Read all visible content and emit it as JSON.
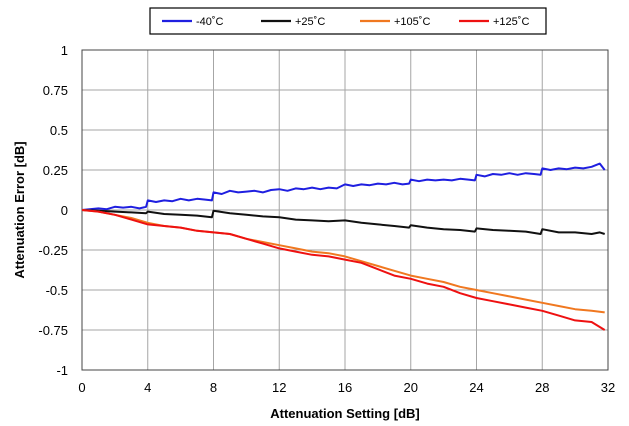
{
  "chart_data": {
    "type": "line",
    "title": "",
    "xlabel": "Attenuation Setting [dB]",
    "ylabel": "Attenuation Error [dB]",
    "xlim": [
      0,
      32
    ],
    "ylim": [
      -1,
      1
    ],
    "xticks": [
      0,
      4,
      8,
      12,
      16,
      20,
      24,
      28,
      32
    ],
    "yticks": [
      1,
      0.75,
      0.5,
      0.25,
      0,
      -0.25,
      -0.5,
      -0.75,
      -1
    ],
    "ytick_labels": [
      "1",
      "0.75",
      "0.5",
      "0.25",
      "0",
      "-0.25",
      "-0.5",
      "-0.75",
      "-1"
    ],
    "grid": true,
    "legend_position": "top",
    "series": [
      {
        "name": "-40˚C",
        "color": "#1f1fe0",
        "x": [
          0,
          1,
          1.5,
          2,
          2.5,
          3,
          3.5,
          3.9,
          4,
          4.5,
          5,
          5.5,
          6,
          6.5,
          7,
          7.5,
          7.9,
          8,
          8.5,
          9,
          9.5,
          10,
          10.5,
          11,
          11.5,
          12,
          12.5,
          13,
          13.5,
          14,
          14.5,
          15,
          15.5,
          16,
          16.5,
          17,
          17.5,
          18,
          18.5,
          19,
          19.5,
          19.9,
          20,
          20.5,
          21,
          21.5,
          22,
          22.5,
          23,
          23.5,
          23.9,
          24,
          24.5,
          25,
          25.5,
          26,
          26.5,
          27,
          27.5,
          27.9,
          28,
          28.5,
          29,
          29.5,
          30,
          30.5,
          31,
          31.5,
          31.8
        ],
        "y": [
          0,
          0.01,
          0.005,
          0.02,
          0.015,
          0.02,
          0.01,
          0.02,
          0.06,
          0.05,
          0.06,
          0.055,
          0.07,
          0.06,
          0.07,
          0.065,
          0.06,
          0.11,
          0.1,
          0.12,
          0.11,
          0.115,
          0.12,
          0.11,
          0.125,
          0.13,
          0.12,
          0.135,
          0.13,
          0.14,
          0.13,
          0.14,
          0.135,
          0.16,
          0.15,
          0.16,
          0.155,
          0.165,
          0.16,
          0.17,
          0.16,
          0.165,
          0.19,
          0.18,
          0.19,
          0.185,
          0.19,
          0.185,
          0.195,
          0.19,
          0.185,
          0.22,
          0.21,
          0.225,
          0.22,
          0.23,
          0.22,
          0.23,
          0.225,
          0.22,
          0.26,
          0.25,
          0.26,
          0.255,
          0.265,
          0.26,
          0.27,
          0.29,
          0.25
        ]
      },
      {
        "name": "+25˚C",
        "color": "#111111",
        "x": [
          0,
          1,
          2,
          3,
          3.9,
          4,
          5,
          6,
          7,
          7.9,
          8,
          9,
          10,
          11,
          12,
          13,
          14,
          15,
          16,
          17,
          18,
          19,
          19.9,
          20,
          21,
          22,
          23,
          23.9,
          24,
          25,
          26,
          27,
          27.9,
          28,
          29,
          30,
          31,
          31.5,
          31.8
        ],
        "y": [
          0,
          -0.005,
          -0.01,
          -0.015,
          -0.02,
          -0.01,
          -0.025,
          -0.03,
          -0.035,
          -0.045,
          -0.005,
          -0.02,
          -0.03,
          -0.04,
          -0.045,
          -0.06,
          -0.065,
          -0.07,
          -0.065,
          -0.08,
          -0.09,
          -0.1,
          -0.11,
          -0.095,
          -0.11,
          -0.12,
          -0.125,
          -0.135,
          -0.115,
          -0.125,
          -0.13,
          -0.135,
          -0.15,
          -0.12,
          -0.14,
          -0.14,
          -0.15,
          -0.14,
          -0.15
        ]
      },
      {
        "name": "+105˚C",
        "color": "#f07820",
        "x": [
          0,
          1,
          2,
          3,
          4,
          5,
          6,
          7,
          8,
          9,
          10,
          11,
          12,
          13,
          14,
          15,
          16,
          17,
          18,
          19,
          20,
          21,
          22,
          23,
          24,
          25,
          26,
          27,
          28,
          29,
          30,
          31,
          31.8
        ],
        "y": [
          0,
          -0.01,
          -0.03,
          -0.05,
          -0.08,
          -0.1,
          -0.11,
          -0.13,
          -0.14,
          -0.15,
          -0.18,
          -0.2,
          -0.22,
          -0.24,
          -0.26,
          -0.27,
          -0.29,
          -0.32,
          -0.35,
          -0.38,
          -0.41,
          -0.43,
          -0.45,
          -0.48,
          -0.5,
          -0.52,
          -0.54,
          -0.56,
          -0.58,
          -0.6,
          -0.62,
          -0.63,
          -0.64
        ]
      },
      {
        "name": "+125˚C",
        "color": "#ee1111",
        "x": [
          0,
          1,
          2,
          3,
          4,
          5,
          6,
          7,
          8,
          9,
          10,
          11,
          12,
          13,
          14,
          15,
          16,
          17,
          18,
          19,
          20,
          21,
          22,
          23,
          24,
          25,
          26,
          27,
          28,
          29,
          30,
          31,
          31.8
        ],
        "y": [
          0,
          -0.01,
          -0.03,
          -0.06,
          -0.09,
          -0.1,
          -0.11,
          -0.13,
          -0.14,
          -0.15,
          -0.18,
          -0.21,
          -0.24,
          -0.26,
          -0.28,
          -0.29,
          -0.31,
          -0.33,
          -0.37,
          -0.41,
          -0.43,
          -0.46,
          -0.48,
          -0.52,
          -0.55,
          -0.57,
          -0.59,
          -0.61,
          -0.63,
          -0.66,
          -0.69,
          -0.7,
          -0.75
        ]
      }
    ]
  }
}
